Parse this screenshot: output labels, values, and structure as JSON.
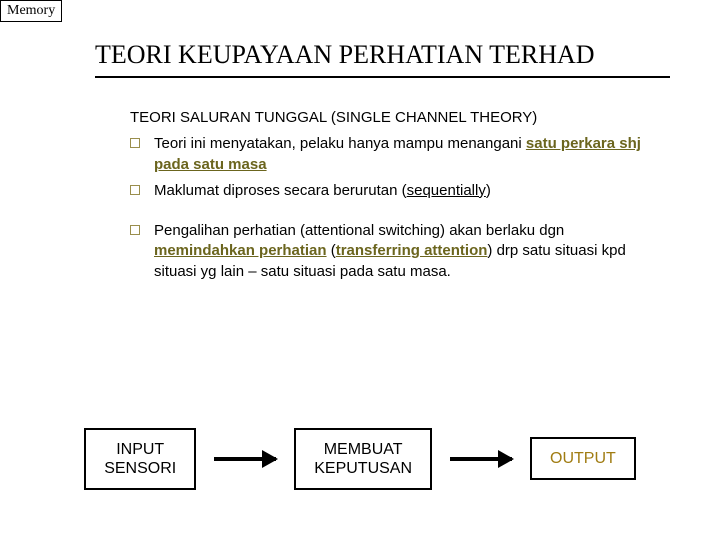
{
  "corner": "Memory",
  "title": "TEORI KEUPAYAAN PERHATIAN TERHAD",
  "subtitle": "TEORI SALURAN TUNGGAL (SINGLE CHANNEL THEORY)",
  "bullets": {
    "b1_pre": "Teori ini menyatakan, pelaku hanya mampu menangani ",
    "b1_em": "satu perkara shj pada satu masa",
    "b2_pre": "Maklumat diproses secara berurutan (",
    "b2_em": "sequentially",
    "b2_post": ")",
    "b3_pre": "Pengalihan perhatian (attentional switching) akan berlaku dgn ",
    "b3_em1": "memindahkan perhatian",
    "b3_mid": " (",
    "b3_em2": "transferring attention",
    "b3_post": ") drp satu situasi kpd situasi yg lain – satu situasi pada satu masa."
  },
  "flow": {
    "box1_l1": "INPUT",
    "box1_l2": "SENSORI",
    "box2_l1": "MEMBUAT",
    "box2_l2": "KEPUTUSAN",
    "box3": "OUTPUT"
  }
}
